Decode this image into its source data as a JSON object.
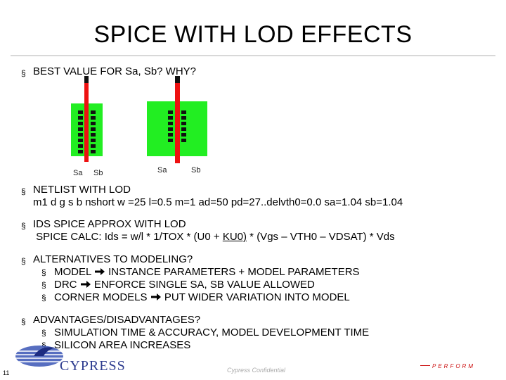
{
  "slide": {
    "title": "SPICE WITH LOD EFFECTS",
    "bullet_glyph": "§",
    "bullets": [
      {
        "text": "BEST VALUE FOR Sa, Sb?  WHY?"
      },
      {
        "line1": "NETLIST WITH LOD",
        "line2": "m1 d g s b nshort w =25 l=0.5 m=1 ad=50 pd=27..delvth0=0.0 sa=1.04 sb=1.04"
      },
      {
        "line1": "IDS SPICE APPROX WITH LOD",
        "line2_pre": "SPICE CALC: Ids =  w/l * 1/TOX * (U0 + ",
        "line2_ul": "KU0)",
        "line2_post": " * (Vgs – VTH0 – VDSAT) * Vds"
      },
      {
        "line1": "ALTERNATIVES TO MODELING?",
        "subs": [
          {
            "pre": "MODEL ",
            "post": " INSTANCE PARAMETERS + MODEL PARAMETERS"
          },
          {
            "pre": "DRC ",
            "post": " ENFORCE SINGLE SA, SB VALUE ALLOWED"
          },
          {
            "pre": "CORNER MODELS ",
            "post": " PUT WIDER VARIATION INTO MODEL"
          }
        ]
      },
      {
        "line1": "ADVANTAGES/DISADVANTAGES?",
        "subs": [
          {
            "text": "SIMULATION TIME & ACCURACY, MODEL DEVELOPMENT TIME"
          },
          {
            "text": "SILICON AREA INCREASES"
          }
        ]
      }
    ]
  },
  "diagram": {
    "left_labels": {
      "sa": "Sa",
      "sb": "Sb"
    },
    "right_labels": {
      "sa": "Sa",
      "sb": "Sb"
    },
    "colors": {
      "active": "#22ee22",
      "gate": "#ee1111",
      "contact": "#111111"
    }
  },
  "footer": {
    "page_number": "11",
    "brand": "CYPRESS",
    "confidential": "Cypress Confidential",
    "tagline": "PERFORM"
  }
}
